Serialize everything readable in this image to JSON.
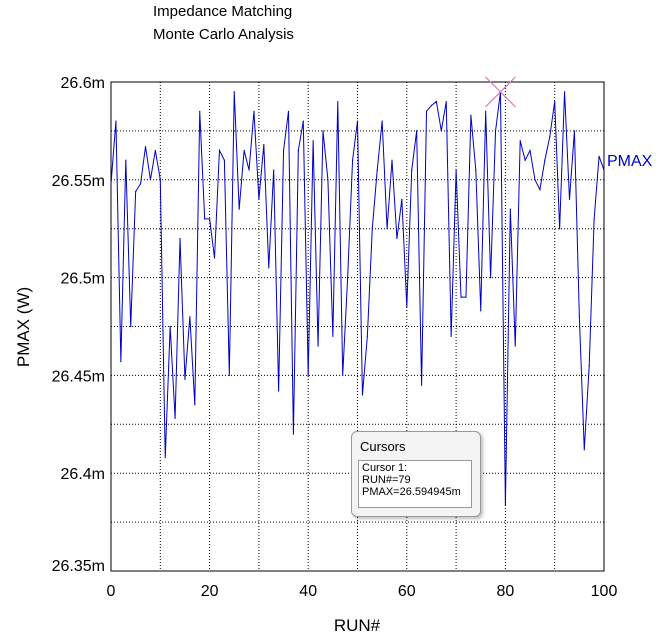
{
  "title_lines": [
    "Impedance Matching",
    "Monte Carlo Analysis"
  ],
  "chart_data": {
    "type": "line",
    "xlabel": "RUN#",
    "ylabel": "PMAX  (W)",
    "xlim": [
      0,
      100
    ],
    "ylim": [
      26.35,
      26.6
    ],
    "x_ticks": [
      0,
      20,
      40,
      60,
      80,
      100
    ],
    "x_tick_labels": [
      "0",
      "20",
      "40",
      "60",
      "80",
      "100"
    ],
    "y_ticks": [
      26.35,
      26.4,
      26.45,
      26.5,
      26.55,
      26.6
    ],
    "y_tick_labels": [
      "26.35m",
      "26.4m",
      "26.45m",
      "26.5m",
      "26.55m",
      "26.6m"
    ],
    "grid": true,
    "series": [
      {
        "name": "PMAX",
        "color": "#0000c8",
        "x": [
          0,
          1,
          2,
          3,
          4,
          5,
          6,
          7,
          8,
          9,
          10,
          11,
          12,
          13,
          14,
          15,
          16,
          17,
          18,
          19,
          20,
          21,
          22,
          23,
          24,
          25,
          26,
          27,
          28,
          29,
          30,
          31,
          32,
          33,
          34,
          35,
          36,
          37,
          38,
          39,
          40,
          41,
          42,
          43,
          44,
          45,
          46,
          47,
          48,
          49,
          50,
          51,
          52,
          53,
          54,
          55,
          56,
          57,
          58,
          59,
          60,
          61,
          62,
          63,
          64,
          65,
          66,
          67,
          68,
          69,
          70,
          71,
          72,
          73,
          74,
          75,
          76,
          77,
          78,
          79,
          80,
          81,
          82,
          83,
          84,
          85,
          86,
          87,
          88,
          89,
          90,
          91,
          92,
          93,
          94,
          95,
          96,
          97,
          98,
          99,
          100
        ],
        "y": [
          26.548,
          26.58,
          26.457,
          26.56,
          26.475,
          26.544,
          26.548,
          26.567,
          26.55,
          26.565,
          26.55,
          26.408,
          26.475,
          26.428,
          26.52,
          26.448,
          26.48,
          26.435,
          26.585,
          26.53,
          26.53,
          26.51,
          26.565,
          26.56,
          26.45,
          26.595,
          26.535,
          26.565,
          26.555,
          26.585,
          26.54,
          26.568,
          26.505,
          26.555,
          26.442,
          26.565,
          26.585,
          26.42,
          26.565,
          26.58,
          26.45,
          26.57,
          26.465,
          26.575,
          26.55,
          26.47,
          26.59,
          26.45,
          26.5,
          26.56,
          26.58,
          26.44,
          26.47,
          26.525,
          26.555,
          26.58,
          26.525,
          26.56,
          26.52,
          26.54,
          26.485,
          26.555,
          26.575,
          26.445,
          26.585,
          26.588,
          26.59,
          26.575,
          26.59,
          26.47,
          26.555,
          26.49,
          26.49,
          26.583,
          26.555,
          26.483,
          26.585,
          26.5,
          26.575,
          26.595,
          26.384,
          26.535,
          26.465,
          26.57,
          26.56,
          26.565,
          26.55,
          26.545,
          26.56,
          26.572,
          26.59,
          26.525,
          26.595,
          26.54,
          26.575,
          26.48,
          26.412,
          26.455,
          26.53,
          26.562,
          26.555
        ]
      }
    ],
    "cursor": {
      "run": 79,
      "value": 26.594945
    }
  },
  "cursor_panel": {
    "title": "Cursors",
    "line1": "Cursor 1:",
    "line2": "RUN#=79",
    "line3": "PMAX=26.594945m"
  }
}
